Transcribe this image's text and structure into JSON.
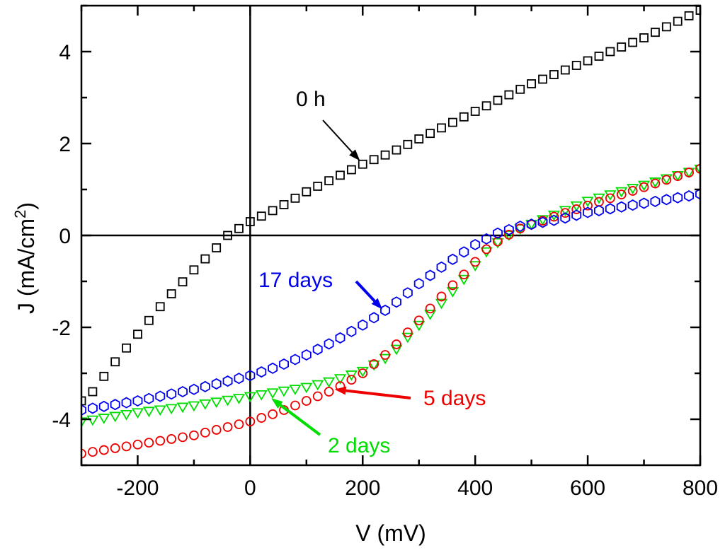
{
  "chart_data": {
    "type": "scatter",
    "title": "",
    "xlabel": "V (mV)",
    "ylabel_main": "J (mA/cm",
    "ylabel_sup": "2",
    "ylabel_close": ")",
    "xlim": [
      -300,
      800
    ],
    "ylim": [
      -5,
      5
    ],
    "xticks": [
      -200,
      0,
      200,
      400,
      600,
      800
    ],
    "yticks": [
      -4,
      -2,
      0,
      2,
      4
    ],
    "xtick_labels": [
      "-200",
      "0",
      "200",
      "400",
      "600",
      "800"
    ],
    "ytick_labels": [
      "-4",
      "-2",
      "0",
      "2",
      "4"
    ],
    "reference_lines": {
      "x": 0,
      "y": 0
    },
    "x_start": -300,
    "x_step": 20,
    "series": [
      {
        "name": "0 h",
        "color": "#000000",
        "marker": "square",
        "anchors": [
          [
            -300,
            -3.6
          ],
          [
            -280,
            -3.4
          ],
          [
            -250,
            -2.9
          ],
          [
            -200,
            -2.15
          ],
          [
            -150,
            -1.4
          ],
          [
            -100,
            -0.75
          ],
          [
            -50,
            -0.15
          ],
          [
            -40,
            0.0
          ],
          [
            0,
            0.3
          ],
          [
            50,
            0.6
          ],
          [
            100,
            0.95
          ],
          [
            150,
            1.25
          ],
          [
            200,
            1.55
          ],
          [
            250,
            1.8
          ],
          [
            300,
            2.1
          ],
          [
            400,
            2.7
          ],
          [
            500,
            3.3
          ],
          [
            600,
            3.8
          ],
          [
            700,
            4.3
          ],
          [
            800,
            4.9
          ]
        ]
      },
      {
        "name": "2 days",
        "color": "#00dd00",
        "marker": "triangle-down",
        "anchors": [
          [
            -300,
            -4.05
          ],
          [
            -250,
            -3.95
          ],
          [
            -200,
            -3.85
          ],
          [
            -100,
            -3.7
          ],
          [
            0,
            -3.5
          ],
          [
            50,
            -3.4
          ],
          [
            100,
            -3.3
          ],
          [
            150,
            -3.15
          ],
          [
            200,
            -2.95
          ],
          [
            250,
            -2.6
          ],
          [
            300,
            -1.95
          ],
          [
            350,
            -1.35
          ],
          [
            380,
            -0.95
          ],
          [
            420,
            -0.35
          ],
          [
            450,
            -0.05
          ],
          [
            480,
            0.15
          ],
          [
            550,
            0.5
          ],
          [
            600,
            0.75
          ],
          [
            700,
            1.1
          ],
          [
            800,
            1.45
          ]
        ]
      },
      {
        "name": "5 days",
        "color": "#ee0000",
        "marker": "circle",
        "anchors": [
          [
            -300,
            -4.75
          ],
          [
            -250,
            -4.65
          ],
          [
            -200,
            -4.55
          ],
          [
            -100,
            -4.35
          ],
          [
            0,
            -4.05
          ],
          [
            50,
            -3.85
          ],
          [
            100,
            -3.6
          ],
          [
            150,
            -3.35
          ],
          [
            200,
            -3.0
          ],
          [
            250,
            -2.5
          ],
          [
            300,
            -1.85
          ],
          [
            350,
            -1.2
          ],
          [
            380,
            -0.85
          ],
          [
            420,
            -0.3
          ],
          [
            450,
            -0.05
          ],
          [
            480,
            0.15
          ],
          [
            550,
            0.45
          ],
          [
            600,
            0.65
          ],
          [
            700,
            1.05
          ],
          [
            800,
            1.45
          ]
        ]
      },
      {
        "name": "17 days",
        "color": "#0000ee",
        "marker": "hexagon",
        "anchors": [
          [
            -300,
            -3.8
          ],
          [
            -250,
            -3.7
          ],
          [
            -200,
            -3.6
          ],
          [
            -100,
            -3.35
          ],
          [
            0,
            -3.05
          ],
          [
            50,
            -2.85
          ],
          [
            100,
            -2.6
          ],
          [
            150,
            -2.3
          ],
          [
            200,
            -1.95
          ],
          [
            250,
            -1.55
          ],
          [
            300,
            -1.05
          ],
          [
            350,
            -0.6
          ],
          [
            400,
            -0.2
          ],
          [
            440,
            0.05
          ],
          [
            480,
            0.2
          ],
          [
            550,
            0.35
          ],
          [
            600,
            0.5
          ],
          [
            700,
            0.7
          ],
          [
            800,
            0.9
          ]
        ]
      }
    ],
    "annotations": [
      {
        "text": "0 h",
        "color": "#000000",
        "arrow_to": [
          200,
          1.55
        ]
      },
      {
        "text": "17 days",
        "color": "#0000ee",
        "arrow_to": [
          240,
          -1.7
        ]
      },
      {
        "text": "5 days",
        "color": "#ee0000",
        "arrow_to": [
          140,
          -3.35
        ]
      },
      {
        "text": "2 days",
        "color": "#00dd00",
        "arrow_to": [
          30,
          -3.45
        ]
      }
    ]
  }
}
